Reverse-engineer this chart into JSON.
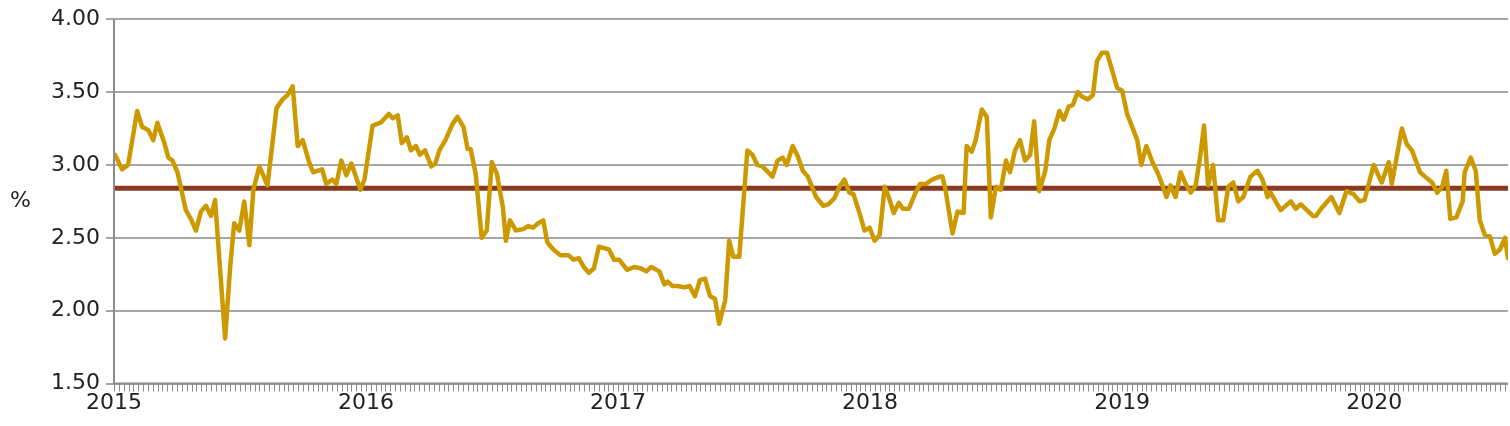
{
  "chart_data": {
    "type": "line",
    "ylabel": "%",
    "xlim": [
      2015,
      2020.531
    ],
    "xticks": [
      2015,
      2016,
      2017,
      2018,
      2019,
      2020
    ],
    "ylim": [
      1.5,
      4
    ],
    "yticks": [
      {
        "value": 1.5,
        "label": "1.50"
      },
      {
        "value": 2,
        "label": "2.00"
      },
      {
        "value": 2.5,
        "label": "2.50"
      },
      {
        "value": 3,
        "label": "3.00"
      },
      {
        "value": 3.5,
        "label": "3.50"
      },
      {
        "value": 4,
        "label": "4.00"
      }
    ],
    "grid": "y",
    "marker": "none",
    "line_style": "solid",
    "ref_lines": [
      {
        "axis": "y",
        "value": 2.84,
        "color": "#8b3a22"
      }
    ],
    "series": [
      {
        "color": "#cc9900",
        "x": [
          2015.004,
          2015.032,
          2015.056,
          2015.092,
          2015.112,
          2015.136,
          2015.156,
          2015.172,
          2015.2,
          2015.216,
          2015.232,
          2015.252,
          2015.285,
          2015.305,
          2015.325,
          2015.345,
          2015.365,
          2015.385,
          2015.401,
          2015.441,
          2015.461,
          2015.477,
          2015.497,
          2015.517,
          2015.537,
          2015.553,
          2015.577,
          2015.609,
          2015.645,
          2015.669,
          2015.689,
          2015.709,
          2015.729,
          2015.749,
          2015.774,
          2015.79,
          2015.826,
          2015.842,
          2015.866,
          2015.882,
          2015.902,
          2015.922,
          2015.942,
          2015.978,
          2015.994,
          2016.026,
          2016.058,
          2016.09,
          2016.106,
          2016.126,
          2016.142,
          2016.162,
          2016.178,
          2016.198,
          2016.214,
          2016.234,
          2016.259,
          2016.275,
          2016.291,
          2016.315,
          2016.343,
          2016.363,
          2016.387,
          2016.403,
          2016.415,
          2016.435,
          2016.459,
          2016.479,
          2016.499,
          2016.519,
          2016.543,
          2016.555,
          2016.571,
          2016.595,
          2016.623,
          2016.643,
          2016.663,
          2016.683,
          2016.703,
          2016.719,
          2016.743,
          2016.772,
          2016.804,
          2016.824,
          2016.844,
          2016.864,
          2016.884,
          2016.904,
          2016.924,
          2016.964,
          2016.984,
          2017.004,
          2017.036,
          2017.064,
          2017.092,
          2017.112,
          2017.132,
          2017.164,
          2017.184,
          2017.196,
          2017.216,
          2017.236,
          2017.264,
          2017.284,
          2017.305,
          2017.325,
          2017.345,
          2017.365,
          2017.385,
          2017.401,
          2017.425,
          2017.441,
          2017.457,
          2017.481,
          2017.513,
          2017.533,
          2017.553,
          2017.573,
          2017.613,
          2017.633,
          2017.653,
          2017.669,
          2017.693,
          2017.713,
          2017.733,
          2017.753,
          2017.786,
          2017.814,
          2017.834,
          2017.858,
          2017.878,
          2017.898,
          2017.918,
          2017.934,
          2017.958,
          2017.978,
          2017.998,
          2018.018,
          2018.038,
          2018.058,
          2018.074,
          2018.094,
          2018.114,
          2018.13,
          2018.154,
          2018.178,
          2018.198,
          2018.222,
          2018.246,
          2018.275,
          2018.287,
          2018.299,
          2018.327,
          2018.347,
          2018.371,
          2018.383,
          2018.403,
          2018.419,
          2018.443,
          2018.463,
          2018.479,
          2018.499,
          2018.519,
          2018.539,
          2018.555,
          2018.575,
          2018.595,
          2018.615,
          2018.635,
          2018.651,
          2018.671,
          2018.695,
          2018.711,
          2018.731,
          2018.751,
          2018.768,
          2018.788,
          2018.804,
          2018.824,
          2018.84,
          2018.864,
          2018.884,
          2018.9,
          2018.92,
          2018.94,
          2018.96,
          2018.98,
          2019.0,
          2019.02,
          2019.04,
          2019.06,
          2019.076,
          2019.096,
          2019.12,
          2019.14,
          2019.156,
          2019.176,
          2019.192,
          2019.212,
          2019.232,
          2019.252,
          2019.272,
          2019.292,
          2019.309,
          2019.325,
          2019.341,
          2019.361,
          2019.381,
          2019.401,
          2019.421,
          2019.441,
          2019.461,
          2019.481,
          2019.509,
          2019.537,
          2019.557,
          2019.577,
          2019.589,
          2019.629,
          2019.669,
          2019.689,
          2019.709,
          2019.757,
          2019.769,
          2019.789,
          2019.83,
          2019.862,
          2019.89,
          2019.918,
          2019.942,
          2019.962,
          2019.998,
          2020.03,
          2020.058,
          2020.07,
          2020.11,
          2020.13,
          2020.15,
          2020.182,
          2020.202,
          2020.23,
          2020.25,
          2020.27,
          2020.286,
          2020.302,
          2020.326,
          2020.351,
          2020.359,
          2020.383,
          2020.403,
          2020.419,
          2020.439,
          2020.459,
          2020.479,
          2020.499,
          2020.519,
          2020.531
        ],
        "values": [
          3.07,
          2.97,
          3.0,
          3.37,
          3.26,
          3.24,
          3.17,
          3.29,
          3.15,
          3.05,
          3.03,
          2.95,
          2.69,
          2.63,
          2.55,
          2.68,
          2.72,
          2.65,
          2.76,
          1.81,
          2.3,
          2.6,
          2.55,
          2.75,
          2.45,
          2.83,
          2.99,
          2.86,
          3.39,
          3.45,
          3.48,
          3.54,
          3.13,
          3.17,
          3.02,
          2.95,
          2.97,
          2.87,
          2.9,
          2.87,
          3.03,
          2.93,
          3.01,
          2.83,
          2.9,
          3.27,
          3.29,
          3.35,
          3.32,
          3.34,
          3.15,
          3.19,
          3.1,
          3.13,
          3.07,
          3.1,
          2.99,
          3.01,
          3.1,
          3.17,
          3.28,
          3.33,
          3.26,
          3.11,
          3.11,
          2.94,
          2.5,
          2.55,
          3.02,
          2.94,
          2.71,
          2.48,
          2.62,
          2.55,
          2.56,
          2.58,
          2.57,
          2.6,
          2.62,
          2.47,
          2.42,
          2.38,
          2.38,
          2.35,
          2.36,
          2.3,
          2.26,
          2.29,
          2.44,
          2.42,
          2.35,
          2.35,
          2.28,
          2.3,
          2.29,
          2.27,
          2.3,
          2.27,
          2.18,
          2.2,
          2.17,
          2.17,
          2.16,
          2.17,
          2.1,
          2.21,
          2.22,
          2.1,
          2.08,
          1.91,
          2.07,
          2.48,
          2.37,
          2.37,
          3.1,
          3.07,
          3.0,
          2.99,
          2.92,
          3.03,
          3.05,
          3.0,
          3.13,
          3.06,
          2.96,
          2.92,
          2.78,
          2.72,
          2.73,
          2.77,
          2.85,
          2.9,
          2.81,
          2.8,
          2.67,
          2.55,
          2.57,
          2.48,
          2.52,
          2.85,
          2.78,
          2.67,
          2.74,
          2.7,
          2.7,
          2.8,
          2.87,
          2.87,
          2.9,
          2.92,
          2.92,
          2.83,
          2.53,
          2.68,
          2.67,
          3.13,
          3.09,
          3.17,
          3.38,
          3.33,
          2.64,
          2.85,
          2.83,
          3.03,
          2.95,
          3.1,
          3.17,
          3.03,
          3.07,
          3.3,
          2.82,
          2.96,
          3.17,
          3.25,
          3.37,
          3.31,
          3.4,
          3.41,
          3.5,
          3.47,
          3.45,
          3.48,
          3.71,
          3.77,
          3.77,
          3.65,
          3.53,
          3.51,
          3.35,
          3.26,
          3.17,
          3.0,
          3.13,
          3.02,
          2.95,
          2.88,
          2.78,
          2.86,
          2.78,
          2.95,
          2.87,
          2.81,
          2.86,
          3.05,
          3.27,
          2.86,
          3.0,
          2.62,
          2.62,
          2.85,
          2.88,
          2.75,
          2.78,
          2.92,
          2.96,
          2.9,
          2.78,
          2.81,
          2.69,
          2.75,
          2.7,
          2.73,
          2.65,
          2.65,
          2.7,
          2.78,
          2.67,
          2.82,
          2.8,
          2.75,
          2.76,
          3.0,
          2.88,
          3.02,
          2.87,
          3.25,
          3.14,
          3.1,
          2.95,
          2.92,
          2.88,
          2.81,
          2.85,
          2.96,
          2.63,
          2.64,
          2.75,
          2.95,
          3.05,
          2.96,
          2.62,
          2.52,
          2.51,
          2.39,
          2.42,
          2.5,
          2.36
        ]
      }
    ]
  }
}
